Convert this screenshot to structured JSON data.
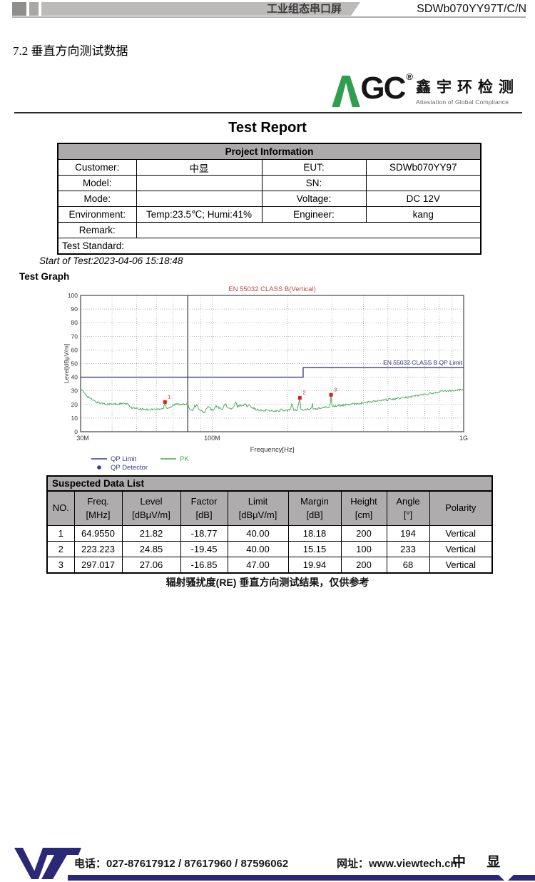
{
  "topbar": {
    "product_type": "工业组态串口屏",
    "model": "SDWb070YY97T/C/N"
  },
  "section_title": "7.2 垂直方向测试数据",
  "logo": {
    "gc_text": "GC",
    "reg_mark": "®",
    "cn_name": "鑫宇环检测",
    "tagline": "Attestation of Global Compliance",
    "green": "#2f9e4e"
  },
  "report": {
    "title": "Test Report",
    "project_info": {
      "header": "Project Information",
      "rows": [
        [
          {
            "t": "Customer:",
            "s": 1
          },
          {
            "t": "中显",
            "s": 1
          },
          {
            "t": "EUT:",
            "s": 1
          },
          {
            "t": "SDWb070YY97",
            "s": 1
          }
        ],
        [
          {
            "t": "Model:",
            "s": 1
          },
          {
            "t": "",
            "s": 1
          },
          {
            "t": "SN:",
            "s": 1
          },
          {
            "t": "",
            "s": 1
          }
        ],
        [
          {
            "t": "Mode:",
            "s": 1
          },
          {
            "t": "",
            "s": 1
          },
          {
            "t": "Voltage:",
            "s": 1
          },
          {
            "t": "DC 12V",
            "s": 1
          }
        ],
        [
          {
            "t": "Environment:",
            "s": 1
          },
          {
            "t": "Temp:23.5℃; Humi:41%",
            "s": 1
          },
          {
            "t": "Engineer:",
            "s": 1
          },
          {
            "t": "kang",
            "s": 1
          }
        ],
        [
          {
            "t": "Remark:",
            "s": 1
          },
          {
            "t": "",
            "s": 3
          }
        ],
        [
          {
            "t": "Test Standard:",
            "s": 4,
            "a": "left"
          }
        ]
      ]
    },
    "start_of_test": "Start of Test:2023-04-06 15:18:48",
    "test_graph_label": "Test Graph"
  },
  "chart_data": {
    "type": "line",
    "title": "EN 55032 CLASS B(Vertical)",
    "title_color": "#c14444",
    "xlabel": "Frequency[Hz]",
    "ylabel": "Level[dBµV/m]",
    "x_scale": "log",
    "x_range_mhz": [
      30,
      1000
    ],
    "x_ticks": [
      "30M",
      "100M",
      "1G"
    ],
    "ylim": [
      0,
      100
    ],
    "y_tick_step": 10,
    "grid": true,
    "marker_line_mhz": 80,
    "limit_label": "EN 55032 CLASS B QP Limit",
    "series": [
      {
        "name": "QP Limit",
        "color": "#3a3a8e",
        "points_mhz_db": [
          [
            30,
            40
          ],
          [
            230,
            40
          ],
          [
            230,
            47
          ],
          [
            1000,
            47
          ]
        ]
      },
      {
        "name": "PK",
        "color": "#3fa552",
        "points_mhz_db": [
          [
            30,
            31
          ],
          [
            30.5,
            30
          ],
          [
            31,
            28.5
          ],
          [
            32,
            26
          ],
          [
            33,
            24
          ],
          [
            34,
            22.5
          ],
          [
            35,
            21.5
          ],
          [
            36,
            21
          ],
          [
            37,
            20.8
          ],
          [
            38,
            20.4
          ],
          [
            40,
            20.2
          ],
          [
            42,
            20.4
          ],
          [
            44,
            20.6
          ],
          [
            46,
            20.3
          ],
          [
            47,
            19
          ],
          [
            48,
            17.5
          ],
          [
            50,
            16.9
          ],
          [
            52,
            16.6
          ],
          [
            54,
            16.4
          ],
          [
            56,
            16.3
          ],
          [
            58,
            16.5
          ],
          [
            60,
            16.4
          ],
          [
            62,
            16.6
          ],
          [
            64,
            17
          ],
          [
            64.955,
            21.82
          ],
          [
            65.8,
            17.2
          ],
          [
            67,
            17.5
          ],
          [
            68.5,
            18.2
          ],
          [
            70,
            19.6
          ],
          [
            72,
            20.1
          ],
          [
            74,
            20.3
          ],
          [
            76,
            20.2
          ],
          [
            78,
            19.9
          ],
          [
            80,
            20.3
          ],
          [
            81,
            18
          ],
          [
            82,
            16.2
          ],
          [
            83.5,
            15.8
          ],
          [
            85,
            18.6
          ],
          [
            87,
            19.4
          ],
          [
            89,
            16
          ],
          [
            90,
            15
          ],
          [
            91.5,
            14.6
          ],
          [
            93,
            14.2
          ],
          [
            95,
            16.8
          ],
          [
            97,
            18.8
          ],
          [
            99,
            16.2
          ],
          [
            101,
            15.6
          ],
          [
            104,
            18.8
          ],
          [
            107,
            17.2
          ],
          [
            110,
            17
          ],
          [
            113,
            20.4
          ],
          [
            116,
            17.2
          ],
          [
            119,
            16.6
          ],
          [
            122,
            18
          ],
          [
            124,
            21.8
          ],
          [
            126,
            18.4
          ],
          [
            129,
            19.6
          ],
          [
            132,
            19
          ],
          [
            135,
            20.8
          ],
          [
            138,
            18.2
          ],
          [
            141,
            19.8
          ],
          [
            144,
            18
          ],
          [
            147,
            17
          ],
          [
            150,
            16.2
          ],
          [
            153,
            15.8
          ],
          [
            156,
            15.6
          ],
          [
            160,
            15.3
          ],
          [
            164,
            15.9
          ],
          [
            168,
            15.4
          ],
          [
            172,
            15.7
          ],
          [
            176,
            15.2
          ],
          [
            180,
            15.1
          ],
          [
            184,
            15
          ],
          [
            188,
            16.4
          ],
          [
            192,
            15.3
          ],
          [
            196,
            15.6
          ],
          [
            200,
            15.4
          ],
          [
            204,
            16
          ],
          [
            208,
            21.3
          ],
          [
            211,
            15.9
          ],
          [
            214,
            15.7
          ],
          [
            218,
            16
          ],
          [
            223.223,
            24.85
          ],
          [
            225.5,
            16.2
          ],
          [
            228,
            15.9
          ],
          [
            232,
            16.1
          ],
          [
            236,
            16.4
          ],
          [
            240,
            16.6
          ],
          [
            244,
            16.3
          ],
          [
            248,
            16.5
          ],
          [
            250,
            21.4
          ],
          [
            252,
            16.6
          ],
          [
            256,
            16.8
          ],
          [
            260,
            16.9
          ],
          [
            265,
            17.1
          ],
          [
            270,
            17.3
          ],
          [
            275,
            17.5
          ],
          [
            280,
            17.7
          ],
          [
            285,
            17.9
          ],
          [
            290,
            18.1
          ],
          [
            294,
            18.3
          ],
          [
            297.017,
            27.06
          ],
          [
            299.5,
            18.6
          ],
          [
            305,
            18.8
          ],
          [
            312,
            19
          ],
          [
            320,
            19.2
          ],
          [
            330,
            19.5
          ],
          [
            340,
            19.7
          ],
          [
            350,
            20
          ],
          [
            362,
            20.2
          ],
          [
            375,
            20.6
          ],
          [
            388,
            20.9
          ],
          [
            400,
            21.2
          ],
          [
            415,
            21.6
          ],
          [
            430,
            22
          ],
          [
            445,
            22.4
          ],
          [
            460,
            22.7
          ],
          [
            475,
            22.9
          ],
          [
            490,
            23.3
          ],
          [
            505,
            23.6
          ],
          [
            520,
            23.9
          ],
          [
            535,
            24.1
          ],
          [
            550,
            24.4
          ],
          [
            565,
            24.7
          ],
          [
            580,
            25
          ],
          [
            600,
            25.4
          ],
          [
            620,
            25.8
          ],
          [
            640,
            26.2
          ],
          [
            660,
            26.7
          ],
          [
            680,
            27.1
          ],
          [
            700,
            27.4
          ],
          [
            720,
            27.8
          ],
          [
            740,
            28.1
          ],
          [
            760,
            28.4
          ],
          [
            780,
            28.8
          ],
          [
            800,
            29.2
          ],
          [
            820,
            29.5
          ],
          [
            840,
            29.8
          ],
          [
            860,
            30
          ],
          [
            880,
            30.2
          ],
          [
            900,
            30.4
          ],
          [
            920,
            30.3
          ],
          [
            940,
            30.6
          ],
          [
            960,
            30.8
          ],
          [
            980,
            30.7
          ],
          [
            1000,
            31.2
          ]
        ]
      }
    ],
    "suspect_markers": [
      {
        "n": "1",
        "mhz": 64.955,
        "db": 21.82
      },
      {
        "n": "2",
        "mhz": 223.223,
        "db": 24.85
      },
      {
        "n": "3",
        "mhz": 297.017,
        "db": 27.06
      }
    ],
    "marker_color": "#e31b1b",
    "legend": [
      {
        "label": "QP Limit",
        "type": "line",
        "color": "#3a3a8e"
      },
      {
        "label": "QP Detector",
        "type": "dot",
        "color": "#3a3a8e"
      },
      {
        "label": "PK",
        "type": "line",
        "color": "#3fa552"
      }
    ]
  },
  "suspected_table": {
    "title": "Suspected Data List",
    "columns": [
      {
        "l1": "NO.",
        "l2": ""
      },
      {
        "l1": "Freq.",
        "l2": "[MHz]"
      },
      {
        "l1": "Level",
        "l2": "[dBμV/m]"
      },
      {
        "l1": "Factor",
        "l2": "[dB]"
      },
      {
        "l1": "Limit",
        "l2": "[dBμV/m]"
      },
      {
        "l1": "Margin",
        "l2": "[dB]"
      },
      {
        "l1": "Height",
        "l2": "[cm]"
      },
      {
        "l1": "Angle",
        "l2": "[°]"
      },
      {
        "l1": "Polarity",
        "l2": ""
      }
    ],
    "rows": [
      [
        "1",
        "64.9550",
        "21.82",
        "-18.77",
        "40.00",
        "18.18",
        "200",
        "194",
        "Vertical"
      ],
      [
        "2",
        "223.223",
        "24.85",
        "-19.45",
        "40.00",
        "15.15",
        "100",
        "233",
        "Vertical"
      ],
      [
        "3",
        "297.017",
        "27.06",
        "-16.85",
        "47.00",
        "19.94",
        "200",
        "68",
        "Vertical"
      ]
    ]
  },
  "caption": "辐射骚扰度(RE) 垂直方向测试结果，仅供参考",
  "footer": {
    "phone": "电话：027-87617912 / 87617960 / 87596062",
    "web": "网址：www.viewtech.cn",
    "company": "中 显",
    "navy": "#2b2878"
  }
}
